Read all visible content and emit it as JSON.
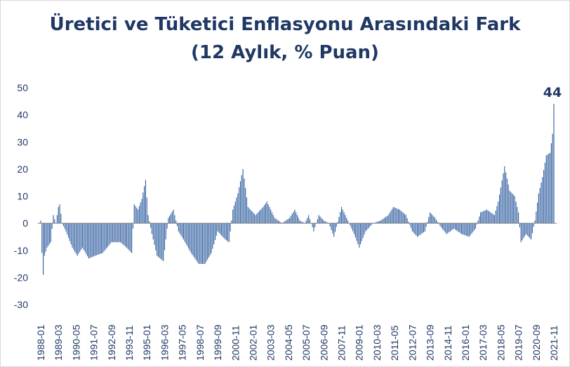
{
  "chart_data": {
    "type": "bar",
    "title": "Üretici ve Tüketici Enflasyonu Arasındaki Fark",
    "subtitle": "(12 Aylık, % Puan)",
    "ylim": [
      -30,
      50
    ],
    "y_ticks": [
      -30,
      -20,
      -10,
      0,
      10,
      20,
      30,
      40,
      50
    ],
    "x_ticks": [
      "1988-01",
      "1989-03",
      "1990-05",
      "1991-07",
      "1992-09",
      "1993-11",
      "1995-01",
      "1996-03",
      "1997-05",
      "1998-07",
      "1999-09",
      "2000-11",
      "2002-01",
      "2003-03",
      "2004-05",
      "2005-07",
      "2006-09",
      "2007-11",
      "2009-01",
      "2010-03",
      "2011-05",
      "2012-07",
      "2013-09",
      "2014-11",
      "2016-01",
      "2017-03",
      "2018-05",
      "2019-07",
      "2020-09",
      "2021-11"
    ],
    "x_start": "1988-01",
    "x_end": "2021-11",
    "bar_color": "#2e5c9e",
    "grid": false,
    "annotation": "44",
    "anchors": [
      [
        "1988-01",
        1
      ],
      [
        "1988-02",
        -11
      ],
      [
        "1988-03",
        -19
      ],
      [
        "1988-04",
        -12
      ],
      [
        "1988-06",
        -9
      ],
      [
        "1988-09",
        -7
      ],
      [
        "1988-11",
        3
      ],
      [
        "1989-01",
        0
      ],
      [
        "1989-03",
        6
      ],
      [
        "1989-04",
        7
      ],
      [
        "1989-06",
        0
      ],
      [
        "1989-09",
        -3
      ],
      [
        "1990-02",
        -9
      ],
      [
        "1990-06",
        -12
      ],
      [
        "1990-10",
        -9
      ],
      [
        "1991-03",
        -13
      ],
      [
        "1991-08",
        -12
      ],
      [
        "1992-02",
        -11
      ],
      [
        "1992-09",
        -7
      ],
      [
        "1993-04",
        -7
      ],
      [
        "1993-09",
        -9
      ],
      [
        "1994-01",
        -11
      ],
      [
        "1994-03",
        7
      ],
      [
        "1994-06",
        5
      ],
      [
        "1994-09",
        9
      ],
      [
        "1994-12",
        16
      ],
      [
        "1995-02",
        3
      ],
      [
        "1995-05",
        -4
      ],
      [
        "1995-09",
        -12
      ],
      [
        "1996-02",
        -14
      ],
      [
        "1996-06",
        2
      ],
      [
        "1996-10",
        5
      ],
      [
        "1997-02",
        -3
      ],
      [
        "1997-06",
        -6
      ],
      [
        "1997-12",
        -11
      ],
      [
        "1998-06",
        -15
      ],
      [
        "1998-11",
        -15
      ],
      [
        "1999-04",
        -11
      ],
      [
        "1999-09",
        -3
      ],
      [
        "2000-03",
        -6
      ],
      [
        "2000-06",
        -7
      ],
      [
        "2000-09",
        5
      ],
      [
        "2001-01",
        11
      ],
      [
        "2001-05",
        20
      ],
      [
        "2001-09",
        6
      ],
      [
        "2002-03",
        3
      ],
      [
        "2002-09",
        6
      ],
      [
        "2002-12",
        8
      ],
      [
        "2003-06",
        2
      ],
      [
        "2003-12",
        0
      ],
      [
        "2004-06",
        2
      ],
      [
        "2004-10",
        5
      ],
      [
        "2005-02",
        1
      ],
      [
        "2005-06",
        0
      ],
      [
        "2005-09",
        3
      ],
      [
        "2006-01",
        -3
      ],
      [
        "2006-05",
        3
      ],
      [
        "2006-09",
        1
      ],
      [
        "2007-01",
        0
      ],
      [
        "2007-05",
        -5
      ],
      [
        "2007-11",
        6
      ],
      [
        "2008-04",
        1
      ],
      [
        "2008-09",
        -4
      ],
      [
        "2009-01",
        -9
      ],
      [
        "2009-06",
        -3
      ],
      [
        "2009-12",
        0
      ],
      [
        "2010-06",
        1
      ],
      [
        "2010-12",
        3
      ],
      [
        "2011-04",
        6
      ],
      [
        "2011-09",
        5
      ],
      [
        "2012-02",
        3
      ],
      [
        "2012-07",
        -3
      ],
      [
        "2012-11",
        -5
      ],
      [
        "2013-05",
        -3
      ],
      [
        "2013-09",
        4
      ],
      [
        "2014-01",
        2
      ],
      [
        "2014-05",
        -1
      ],
      [
        "2014-10",
        -4
      ],
      [
        "2015-04",
        -2
      ],
      [
        "2015-10",
        -4
      ],
      [
        "2016-04",
        -5
      ],
      [
        "2016-09",
        -2
      ],
      [
        "2017-01",
        4
      ],
      [
        "2017-06",
        5
      ],
      [
        "2017-12",
        3
      ],
      [
        "2018-03",
        8
      ],
      [
        "2018-08",
        21
      ],
      [
        "2018-12",
        12
      ],
      [
        "2019-04",
        10
      ],
      [
        "2019-07",
        4
      ],
      [
        "2019-09",
        -7
      ],
      [
        "2020-01",
        -4
      ],
      [
        "2020-05",
        -6
      ],
      [
        "2020-08",
        1
      ],
      [
        "2020-11",
        11
      ],
      [
        "2021-02",
        17
      ],
      [
        "2021-05",
        25
      ],
      [
        "2021-08",
        26
      ],
      [
        "2021-10",
        33
      ],
      [
        "2021-11",
        44
      ]
    ]
  }
}
